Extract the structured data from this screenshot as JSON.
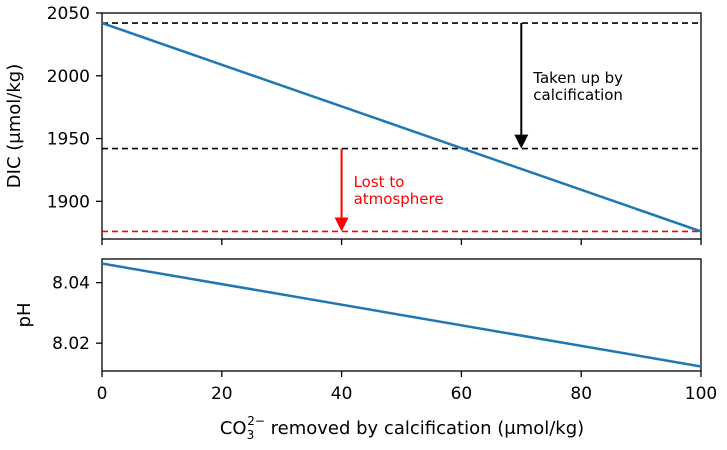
{
  "chart_data": [
    {
      "type": "line",
      "ylabel": "DIC (μmol/kg)",
      "xlim": [
        0,
        100
      ],
      "ylim": [
        1870,
        2050
      ],
      "yticks": [
        1900,
        1950,
        2000,
        2050
      ],
      "series": [
        {
          "x": [
            0,
            100
          ],
          "y": [
            2042,
            1876
          ],
          "color": "#1f77b4"
        }
      ],
      "hlines": [
        {
          "y": 2042,
          "color": "#000000",
          "style": "dashed"
        },
        {
          "y": 1942,
          "color": "#000000",
          "style": "dashed"
        },
        {
          "y": 1876,
          "color": "#ff0000",
          "style": "dashed"
        }
      ],
      "arrows": [
        {
          "x": 70,
          "y_from": 2042,
          "y_to": 1942,
          "color": "#000000",
          "label_lines": [
            "Taken up by",
            "calcification"
          ]
        },
        {
          "x": 40,
          "y_from": 1942,
          "y_to": 1876,
          "color": "#ff0000",
          "label_lines": [
            "Lost to",
            "atmosphere"
          ]
        }
      ]
    },
    {
      "type": "line",
      "ylabel": "pH",
      "xlim": [
        0,
        100
      ],
      "ylim": [
        8.0108,
        8.0478
      ],
      "yticks": [
        8.02,
        8.04
      ],
      "ytick_labels": [
        "8.02",
        "8.04"
      ],
      "xticks": [
        0,
        20,
        40,
        60,
        80,
        100
      ],
      "xlabel_main": "CO",
      "xlabel_sub": "3",
      "xlabel_sup": "2−",
      "xlabel_rest": " removed by calcification (μmol/kg)",
      "series": [
        {
          "x": [
            0,
            100
          ],
          "y": [
            8.0463,
            8.0123
          ],
          "color": "#1f77b4"
        }
      ]
    }
  ]
}
